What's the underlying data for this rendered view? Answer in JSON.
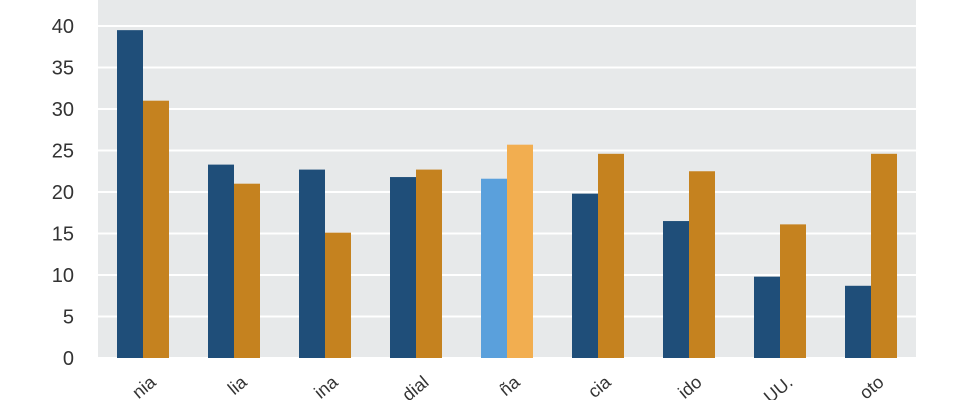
{
  "chart_data": {
    "type": "bar",
    "categories": [
      "nia",
      "lia",
      "ina",
      "dial",
      "ña",
      "cia",
      "ido",
      "UU.",
      "oto"
    ],
    "series": [
      {
        "values": [
          39.5,
          23.3,
          22.7,
          21.8,
          21.6,
          19.8,
          16.5,
          9.8,
          8.7
        ]
      },
      {
        "values": [
          31.0,
          21.0,
          15.1,
          22.7,
          25.7,
          24.6,
          22.5,
          16.1,
          24.6
        ]
      }
    ],
    "highlight_index": 4,
    "ylim": [
      0,
      40
    ],
    "yticks": [
      "0",
      "5",
      "10",
      "15",
      "20",
      "25",
      "30",
      "35",
      "40"
    ],
    "grid": true,
    "title": "",
    "xlabel": "",
    "ylabel": "",
    "colors": {
      "series1": "#1f4e79",
      "series2": "#c5821f",
      "series1_highlight": "#5aa0dc",
      "series2_highlight": "#f2ae50",
      "plot_background": "#e7e9ea",
      "grid": "#ffffff"
    }
  }
}
